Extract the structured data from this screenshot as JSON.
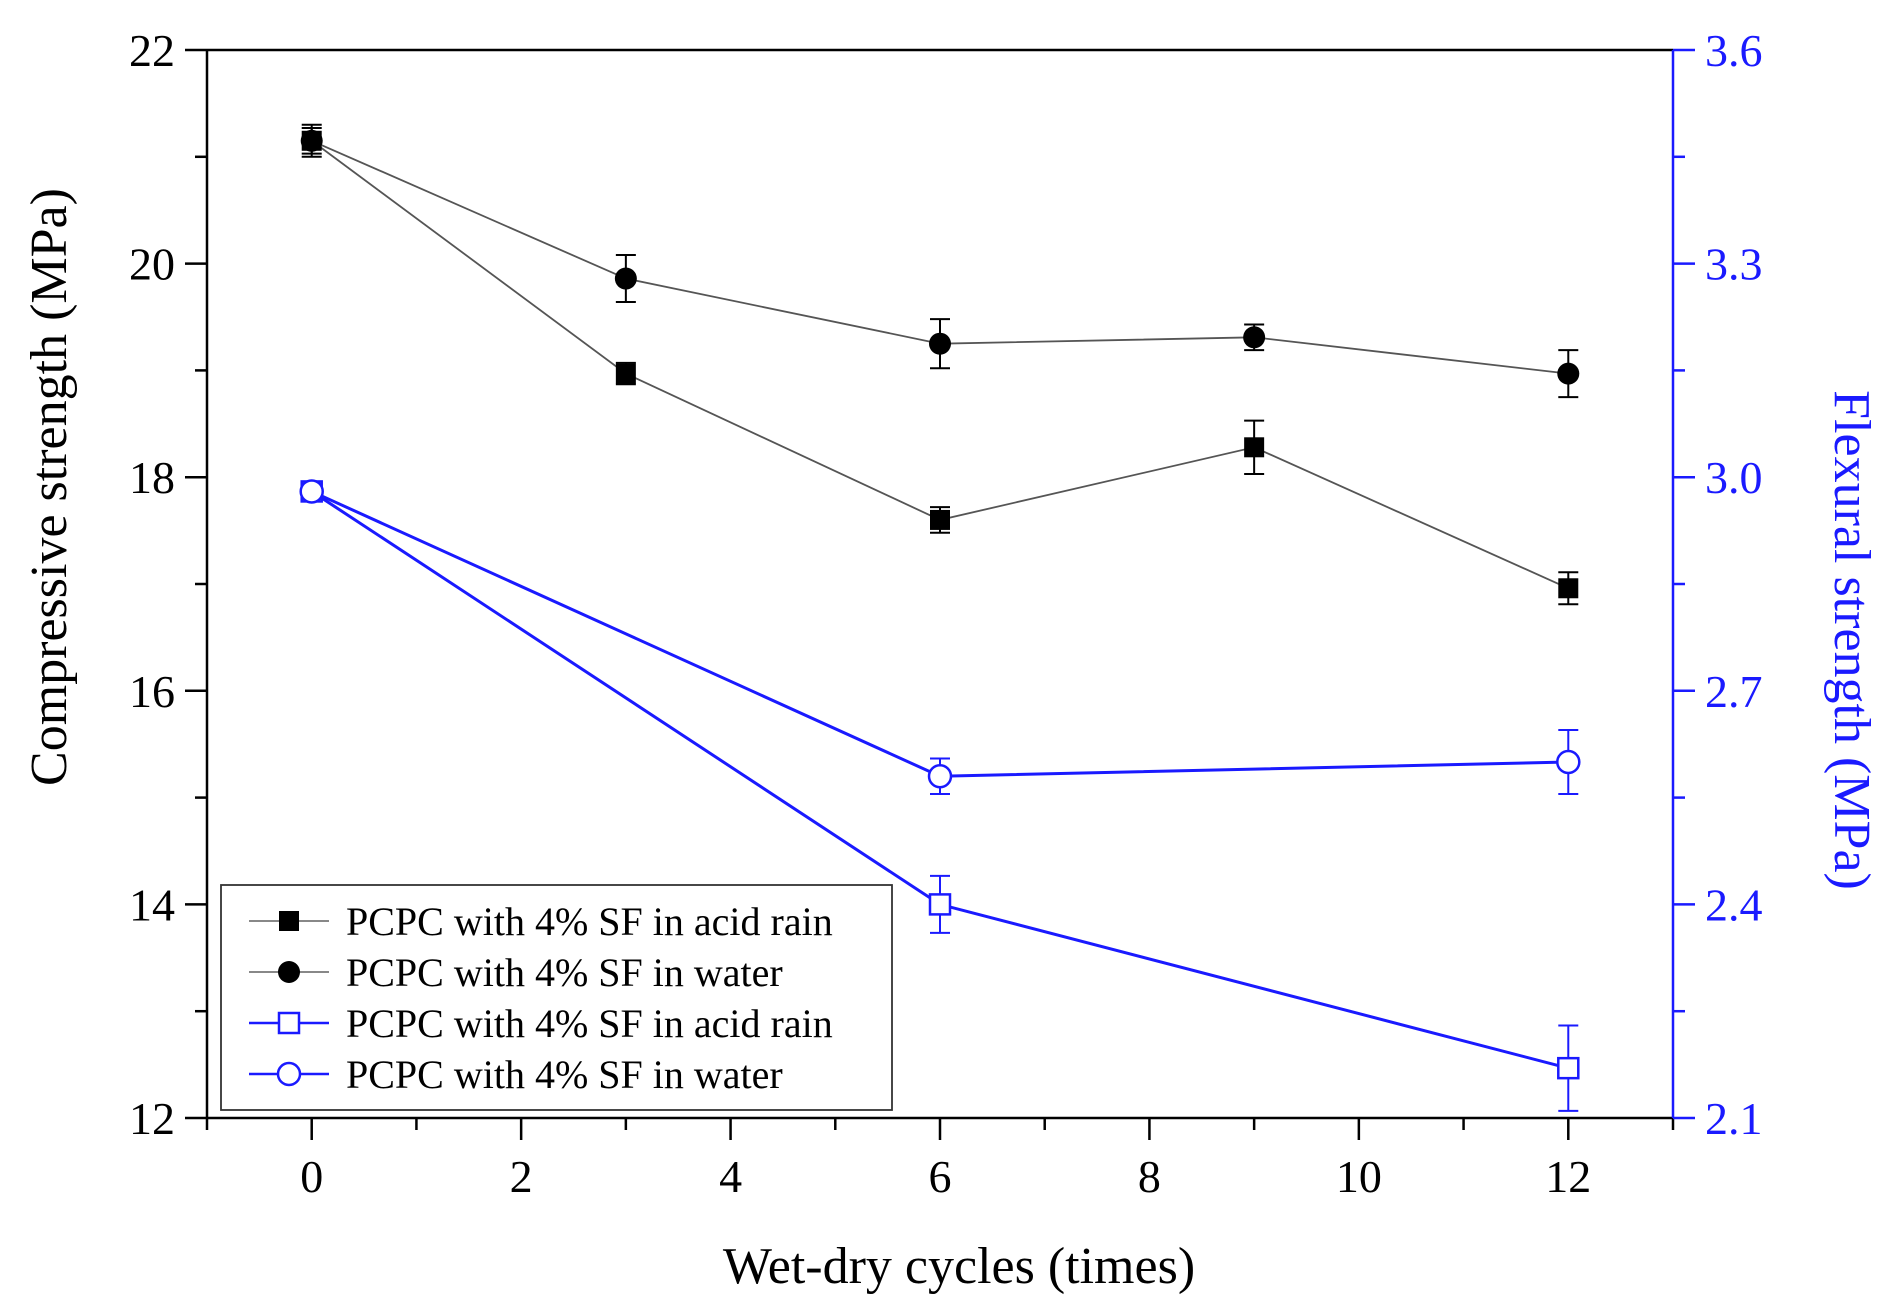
{
  "chart_data": {
    "type": "line",
    "xlabel": "Wet-dry cycles (times)",
    "ylabel": "Compressive strength (MPa)",
    "y2label": "Flexural strength (MPa)",
    "xlim": [
      -1,
      13
    ],
    "ylim": [
      12,
      22
    ],
    "y2lim": [
      2.1,
      3.6
    ],
    "xticks": [
      "0",
      "2",
      "4",
      "6",
      "8",
      "10",
      "12"
    ],
    "yticks": [
      "12",
      "14",
      "16",
      "18",
      "20",
      "22"
    ],
    "y2ticks": [
      "2.1",
      "2.4",
      "2.7",
      "3.0",
      "3.3",
      "3.6"
    ],
    "colors": {
      "left": "#000000",
      "right": "#1a1aff",
      "left_line": "#555555"
    },
    "series": [
      {
        "name": "PCPC with 4% SF in acid rain",
        "axis": "left",
        "marker": "filled-square",
        "x": [
          0,
          3,
          6,
          9,
          12
        ],
        "values": [
          21.15,
          18.97,
          17.6,
          18.28,
          16.96
        ],
        "errors": [
          0.15,
          0.1,
          0.12,
          0.25,
          0.15
        ]
      },
      {
        "name": "PCPC with 4% SF in water",
        "axis": "left",
        "marker": "filled-circle",
        "x": [
          0,
          3,
          6,
          9,
          12
        ],
        "values": [
          21.15,
          19.86,
          19.25,
          19.31,
          18.97
        ],
        "errors": [
          0.12,
          0.22,
          0.23,
          0.12,
          0.22
        ]
      },
      {
        "name": "PCPC with 4% SF in acid rain",
        "axis": "right",
        "marker": "open-square",
        "x": [
          0,
          6,
          12
        ],
        "values": [
          2.98,
          2.4,
          2.17
        ],
        "errors": [
          0.01,
          0.04,
          0.06
        ]
      },
      {
        "name": "PCPC with 4% SF in water",
        "axis": "right",
        "marker": "open-circle",
        "x": [
          0,
          6,
          12
        ],
        "values": [
          2.98,
          2.58,
          2.6
        ],
        "errors": [
          0.01,
          0.025,
          0.045
        ]
      }
    ]
  }
}
